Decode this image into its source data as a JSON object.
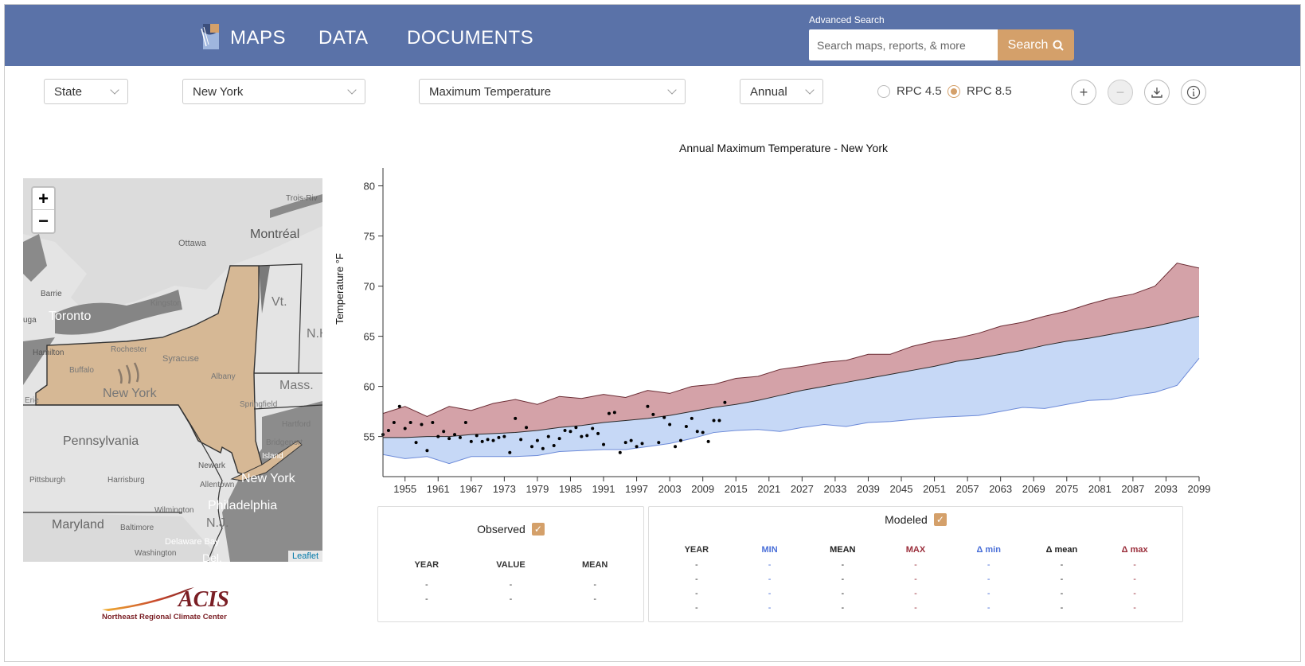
{
  "nav": {
    "maps": "MAPS",
    "data": "DATA",
    "documents": "DOCUMENTS"
  },
  "search": {
    "label": "Advanced Search",
    "placeholder": "Search maps, reports, & more",
    "button": "Search"
  },
  "filters": {
    "area_type": "State",
    "area": "New York",
    "variable": "Maximum Temperature",
    "season": "Annual",
    "rpc45": "RPC 4.5",
    "rpc85": "RPC 8.5",
    "selected_rpc": "RPC 8.5"
  },
  "map": {
    "zoom_in": "+",
    "zoom_out": "−",
    "attribution": "Leaflet",
    "labels": [
      "Trois-Riv",
      "Ottawa",
      "Montréal",
      "Barrie",
      "Toronto",
      "Kingston",
      "Vt.",
      "N.H.",
      "Hamilton",
      "Rochester",
      "Syracuse",
      "Buffalo",
      "Albany",
      "New York",
      "Mass.",
      "Springfield",
      "Hartford",
      "Bridgeport",
      "Pennsylvania",
      "Newark",
      "New York",
      "Pittsburgh",
      "Harrisburg",
      "Allentown",
      "Philadelphia",
      "Wilmington",
      "Maryland",
      "Baltimore",
      "N.J.",
      "Washington",
      "Delaware Bay",
      "Del.",
      "uga",
      "Erie",
      "Island"
    ]
  },
  "logo": {
    "name": "ACIS",
    "subtitle": "Northeast Regional Climate Center"
  },
  "chart_data": {
    "type": "area",
    "title": "Annual Maximum Temperature - New York",
    "ylabel": "Temperature °F",
    "xlim": [
      1951,
      2099
    ],
    "ylim": [
      51,
      81
    ],
    "yticks": [
      55,
      60,
      65,
      70,
      75,
      80
    ],
    "xticks": [
      1955,
      1961,
      1967,
      1973,
      1979,
      1985,
      1991,
      1997,
      2003,
      2009,
      2015,
      2021,
      2027,
      2033,
      2039,
      2045,
      2051,
      2057,
      2063,
      2069,
      2075,
      2081,
      2087,
      2093,
      2099
    ],
    "colors": {
      "max_band": "#d4a2a8",
      "min_band": "#c6d8f6",
      "max_line": "#6b2c34",
      "min_line": "#6c8ad8",
      "mean_line": "#2a2a2a",
      "observed": "#000000"
    },
    "modeled_years": [
      1951,
      1955,
      1959,
      1963,
      1967,
      1971,
      1975,
      1979,
      1983,
      1987,
      1991,
      1995,
      1999,
      2003,
      2007,
      2011,
      2015,
      2019,
      2023,
      2027,
      2031,
      2035,
      2039,
      2043,
      2047,
      2051,
      2055,
      2059,
      2063,
      2067,
      2071,
      2075,
      2079,
      2083,
      2087,
      2091,
      2095,
      2099
    ],
    "modeled_min": [
      53.2,
      52.8,
      53.0,
      52.3,
      53.0,
      53.0,
      53.0,
      53.1,
      53.5,
      53.6,
      53.7,
      53.7,
      54.0,
      54.3,
      54.8,
      55.4,
      55.6,
      55.7,
      55.5,
      55.9,
      56.2,
      56.0,
      56.4,
      56.5,
      56.7,
      56.9,
      57.0,
      57.1,
      57.5,
      57.9,
      57.8,
      58.2,
      58.6,
      58.7,
      59.1,
      59.4,
      60.1,
      62.8
    ],
    "modeled_mean": [
      54.9,
      54.9,
      55.0,
      55.0,
      55.2,
      55.3,
      55.4,
      55.6,
      55.9,
      56.1,
      56.4,
      56.6,
      56.8,
      57.1,
      57.5,
      57.9,
      58.2,
      58.6,
      59.1,
      59.6,
      60.0,
      60.4,
      60.8,
      61.2,
      61.6,
      62.0,
      62.5,
      62.8,
      63.2,
      63.6,
      64.1,
      64.5,
      64.8,
      65.2,
      65.6,
      66.0,
      66.5,
      67.0
    ],
    "modeled_max": [
      57.3,
      58.0,
      57.0,
      58.0,
      57.6,
      58.3,
      58.7,
      58.2,
      59.0,
      58.8,
      59.2,
      58.9,
      59.6,
      59.3,
      60.0,
      60.2,
      60.8,
      61.0,
      61.7,
      62.0,
      62.4,
      62.6,
      63.2,
      63.2,
      64.0,
      64.5,
      64.8,
      65.3,
      66.0,
      66.4,
      67.0,
      67.5,
      68.2,
      68.8,
      69.2,
      70.0,
      72.3,
      71.8
    ],
    "observed": [
      {
        "x": 1951,
        "y": 55.2
      },
      {
        "x": 1952,
        "y": 55.6
      },
      {
        "x": 1953,
        "y": 56.4
      },
      {
        "x": 1954,
        "y": 58.0
      },
      {
        "x": 1955,
        "y": 55.8
      },
      {
        "x": 1956,
        "y": 56.4
      },
      {
        "x": 1957,
        "y": 54.4
      },
      {
        "x": 1958,
        "y": 56.2
      },
      {
        "x": 1959,
        "y": 53.6
      },
      {
        "x": 1960,
        "y": 56.4
      },
      {
        "x": 1961,
        "y": 55.0
      },
      {
        "x": 1962,
        "y": 55.5
      },
      {
        "x": 1963,
        "y": 54.8
      },
      {
        "x": 1964,
        "y": 55.2
      },
      {
        "x": 1965,
        "y": 54.9
      },
      {
        "x": 1966,
        "y": 56.4
      },
      {
        "x": 1967,
        "y": 54.5
      },
      {
        "x": 1968,
        "y": 55.1
      },
      {
        "x": 1969,
        "y": 54.5
      },
      {
        "x": 1970,
        "y": 54.7
      },
      {
        "x": 1971,
        "y": 54.6
      },
      {
        "x": 1972,
        "y": 54.9
      },
      {
        "x": 1973,
        "y": 55.0
      },
      {
        "x": 1974,
        "y": 53.4
      },
      {
        "x": 1975,
        "y": 56.8
      },
      {
        "x": 1976,
        "y": 54.7
      },
      {
        "x": 1977,
        "y": 55.9
      },
      {
        "x": 1978,
        "y": 54.0
      },
      {
        "x": 1979,
        "y": 54.6
      },
      {
        "x": 1980,
        "y": 53.8
      },
      {
        "x": 1981,
        "y": 55.0
      },
      {
        "x": 1982,
        "y": 54.1
      },
      {
        "x": 1983,
        "y": 54.8
      },
      {
        "x": 1984,
        "y": 55.6
      },
      {
        "x": 1985,
        "y": 55.5
      },
      {
        "x": 1986,
        "y": 55.9
      },
      {
        "x": 1987,
        "y": 55.0
      },
      {
        "x": 1988,
        "y": 55.1
      },
      {
        "x": 1989,
        "y": 55.8
      },
      {
        "x": 1990,
        "y": 55.3
      },
      {
        "x": 1991,
        "y": 54.2
      },
      {
        "x": 1992,
        "y": 57.3
      },
      {
        "x": 1993,
        "y": 57.4
      },
      {
        "x": 1994,
        "y": 53.4
      },
      {
        "x": 1995,
        "y": 54.4
      },
      {
        "x": 1996,
        "y": 54.6
      },
      {
        "x": 1997,
        "y": 54.0
      },
      {
        "x": 1998,
        "y": 54.3
      },
      {
        "x": 1999,
        "y": 58.0
      },
      {
        "x": 2000,
        "y": 57.2
      },
      {
        "x": 2001,
        "y": 54.4
      },
      {
        "x": 2002,
        "y": 56.9
      },
      {
        "x": 2003,
        "y": 56.2
      },
      {
        "x": 2004,
        "y": 54.0
      },
      {
        "x": 2005,
        "y": 54.6
      },
      {
        "x": 2006,
        "y": 56.0
      },
      {
        "x": 2007,
        "y": 56.8
      },
      {
        "x": 2008,
        "y": 55.5
      },
      {
        "x": 2009,
        "y": 55.4
      },
      {
        "x": 2010,
        "y": 54.5
      },
      {
        "x": 2011,
        "y": 56.6
      },
      {
        "x": 2012,
        "y": 56.6
      },
      {
        "x": 2013,
        "y": 58.4
      }
    ]
  },
  "observed_panel": {
    "title": "Observed",
    "headers": [
      "YEAR",
      "VALUE",
      "MEAN"
    ],
    "rows": [
      [
        "-",
        "-",
        "-"
      ],
      [
        "-",
        "-",
        "-"
      ]
    ]
  },
  "modeled_panel": {
    "title": "Modeled",
    "headers": [
      "YEAR",
      "MIN",
      "MEAN",
      "MAX",
      "Δ min",
      "Δ mean",
      "Δ max"
    ],
    "header_colors": [
      "#333333",
      "#4a6fd8",
      "#222222",
      "#9a2d3a",
      "#4a6fd8",
      "#222222",
      "#9a2d3a"
    ],
    "rows": [
      [
        "-",
        "-",
        "-",
        "-",
        "-",
        "-",
        "-"
      ],
      [
        "-",
        "-",
        "-",
        "-",
        "-",
        "-",
        "-"
      ],
      [
        "-",
        "-",
        "-",
        "-",
        "-",
        "-",
        "-"
      ],
      [
        "-",
        "-",
        "-",
        "-",
        "-",
        "-",
        "-"
      ]
    ]
  }
}
